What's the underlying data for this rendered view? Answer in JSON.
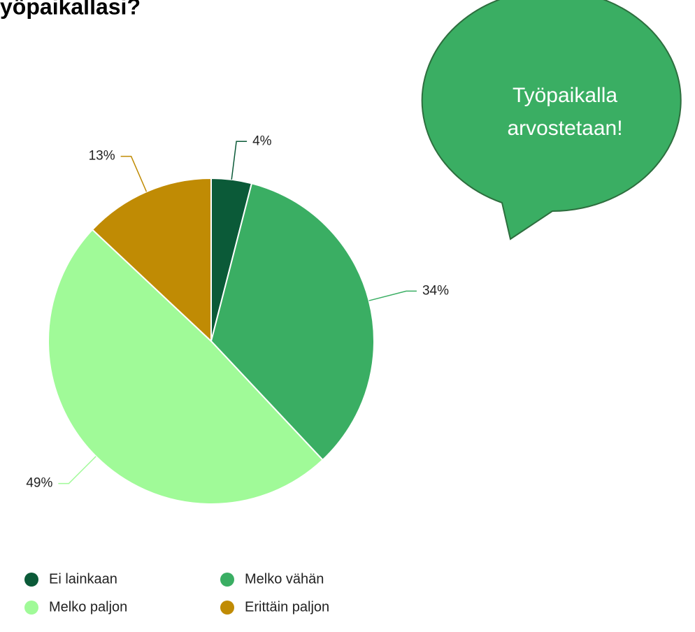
{
  "chart_data": {
    "type": "pie",
    "title": "yöpaikallasi?",
    "annotation": [
      "Työpaikalla",
      "arvostetaan!"
    ],
    "categories": [
      "Ei lainkaan",
      "Melko vähän",
      "Melko paljon",
      "Erittäin paljon"
    ],
    "values": [
      4,
      34,
      49,
      13
    ],
    "value_labels": [
      "4%",
      "34%",
      "49%",
      "13%"
    ],
    "colors": [
      "#0b5a38",
      "#3aae63",
      "#a0fa98",
      "#c08b04"
    ],
    "legend": "bottom"
  }
}
